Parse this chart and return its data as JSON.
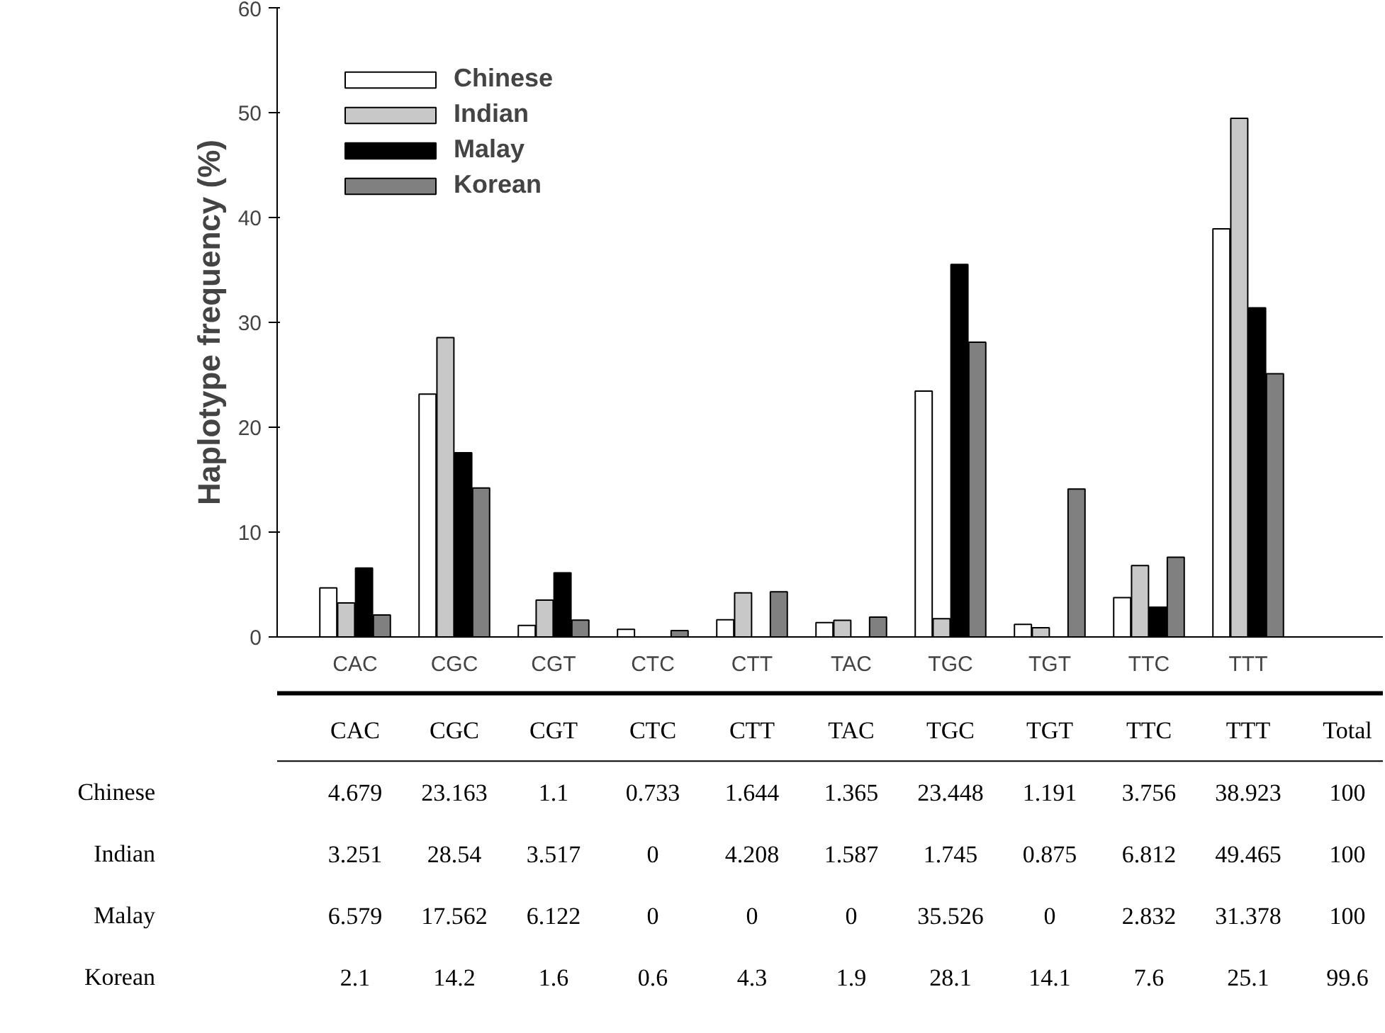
{
  "chart_data": {
    "type": "bar",
    "ylabel": "Haplotype frequency (%)",
    "categories": [
      "CAC",
      "CGC",
      "CGT",
      "CTC",
      "CTT",
      "TAC",
      "TGC",
      "TGT",
      "TTC",
      "TTT"
    ],
    "series": [
      {
        "name": "Chinese",
        "color": "#ffffff",
        "values": [
          4.679,
          23.163,
          1.1,
          0.733,
          1.644,
          1.365,
          23.448,
          1.191,
          3.756,
          38.923
        ],
        "value_labels": [
          "4.679",
          "23.163",
          "1.1",
          "0.733",
          "1.644",
          "1.365",
          "23.448",
          "1.191",
          "3.756",
          "38.923"
        ]
      },
      {
        "name": "Indian",
        "color": "#c8c8c8",
        "values": [
          3.251,
          28.54,
          3.517,
          0,
          4.208,
          1.587,
          1.745,
          0.875,
          6.812,
          49.465
        ],
        "value_labels": [
          "3.251",
          "28.54",
          "3.517",
          "0",
          "4.208",
          "1.587",
          "1.745",
          "0.875",
          "6.812",
          "49.465"
        ]
      },
      {
        "name": "Malay",
        "color": "#000000",
        "values": [
          6.579,
          17.562,
          6.122,
          0,
          0,
          0,
          35.526,
          0,
          2.832,
          31.378
        ],
        "value_labels": [
          "6.579",
          "17.562",
          "6.122",
          "0",
          "0",
          "0",
          "35.526",
          "0",
          "2.832",
          "31.378"
        ]
      },
      {
        "name": "Korean",
        "color": "#808080",
        "values": [
          2.1,
          14.2,
          1.6,
          0.6,
          4.3,
          1.9,
          28.1,
          14.1,
          7.6,
          25.1
        ],
        "value_labels": [
          "2.1",
          "14.2",
          "1.6",
          "0.6",
          "4.3",
          "1.9",
          "28.1",
          "14.1",
          "7.6",
          "25.1"
        ]
      }
    ],
    "ylim": [
      0,
      60
    ],
    "yticks": [
      0,
      10,
      20,
      30,
      40,
      50,
      60
    ],
    "grid": false,
    "legend": "top left",
    "annotations": [
      "Total",
      "100",
      "100",
      "100",
      "99.6"
    ]
  }
}
